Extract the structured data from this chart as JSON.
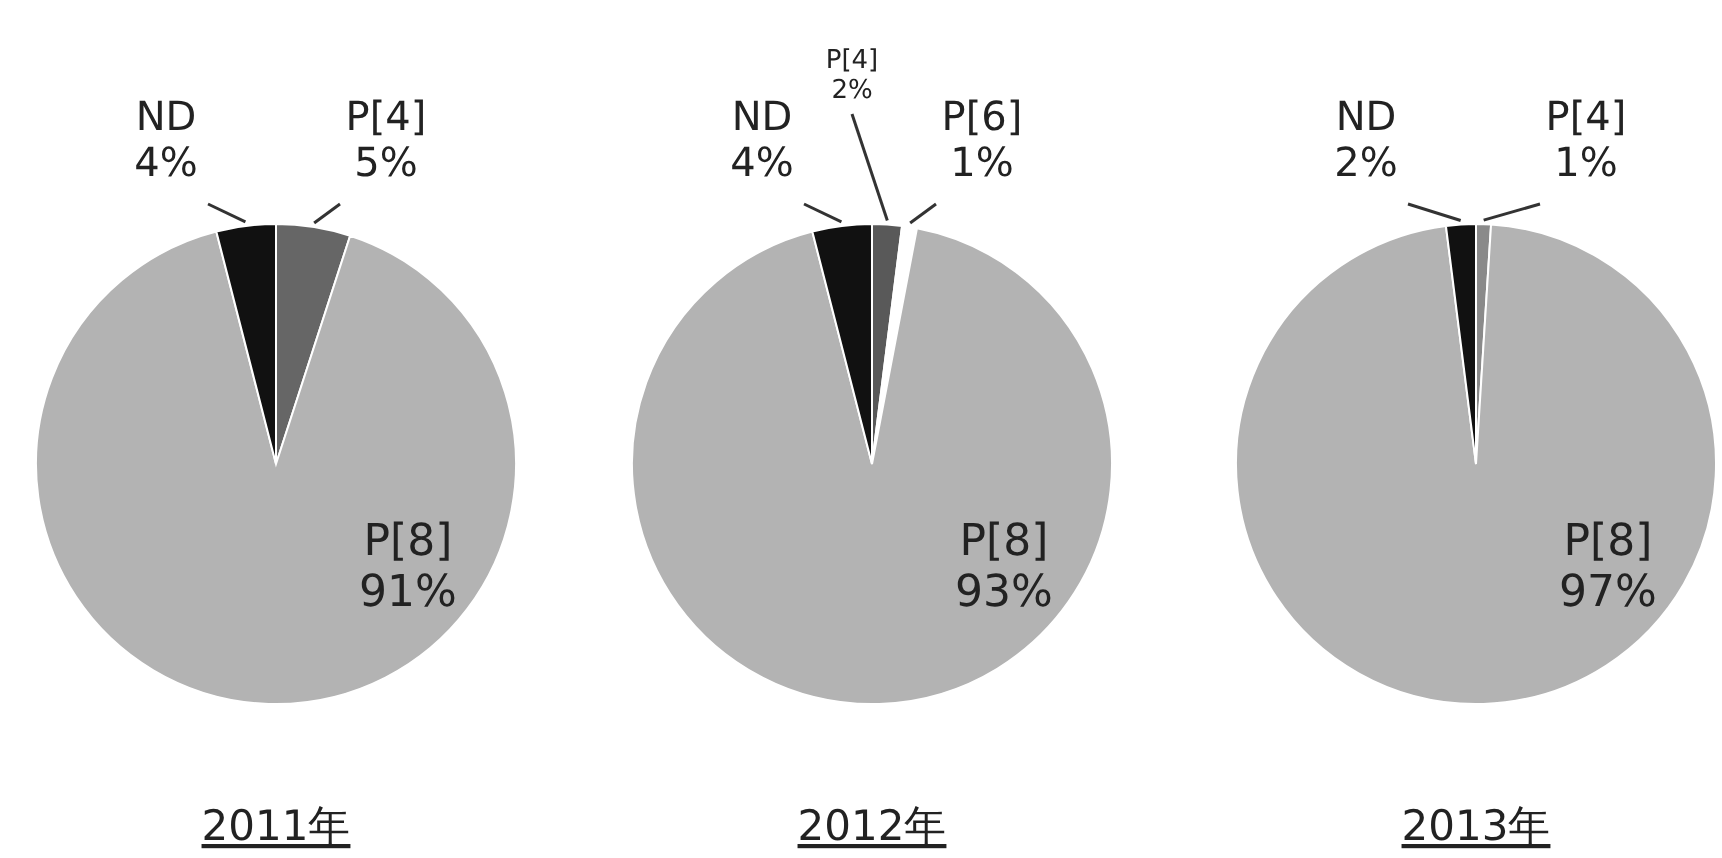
{
  "chart_data": [
    {
      "type": "pie",
      "title": "2011年",
      "categories": [
        "P[4]",
        "P[8]",
        "ND"
      ],
      "values": [
        5,
        91,
        4
      ],
      "colors": [
        "#666666",
        "#b3b3b3",
        "#111111"
      ],
      "value_labels": [
        "5%",
        "91%",
        "4%"
      ]
    },
    {
      "type": "pie",
      "title": "2012年",
      "categories": [
        "P[4]",
        "P[6]",
        "P[8]",
        "ND"
      ],
      "values": [
        2,
        1,
        93,
        4
      ],
      "colors": [
        "#595959",
        "#ffffff",
        "#b3b3b3",
        "#111111"
      ],
      "value_labels": [
        "2%",
        "1%",
        "93%",
        "4%"
      ]
    },
    {
      "type": "pie",
      "title": "2013年",
      "categories": [
        "P[4]",
        "P[8]",
        "ND"
      ],
      "values": [
        1,
        97,
        2
      ],
      "colors": [
        "#8a8a8a",
        "#b3b3b3",
        "#111111"
      ],
      "value_labels": [
        "1%",
        "97%",
        "2%"
      ]
    }
  ]
}
